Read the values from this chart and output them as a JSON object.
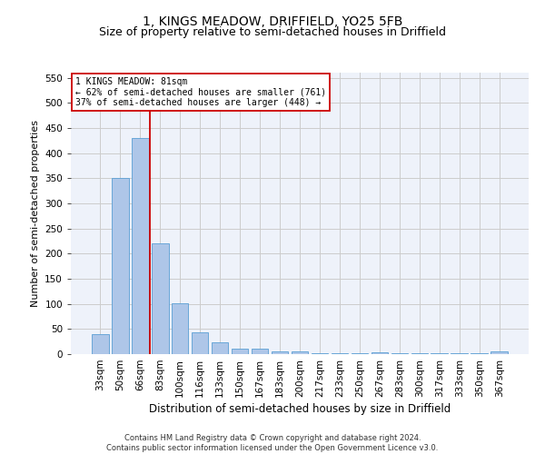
{
  "title": "1, KINGS MEADOW, DRIFFIELD, YO25 5FB",
  "subtitle": "Size of property relative to semi-detached houses in Driffield",
  "xlabel": "Distribution of semi-detached houses by size in Driffield",
  "ylabel": "Number of semi-detached properties",
  "footer_line1": "Contains HM Land Registry data © Crown copyright and database right 2024.",
  "footer_line2": "Contains public sector information licensed under the Open Government Licence v3.0.",
  "categories": [
    "33sqm",
    "50sqm",
    "66sqm",
    "83sqm",
    "100sqm",
    "116sqm",
    "133sqm",
    "150sqm",
    "167sqm",
    "183sqm",
    "200sqm",
    "217sqm",
    "233sqm",
    "250sqm",
    "267sqm",
    "283sqm",
    "300sqm",
    "317sqm",
    "333sqm",
    "350sqm",
    "367sqm"
  ],
  "values": [
    40,
    350,
    430,
    220,
    102,
    43,
    24,
    10,
    10,
    5,
    6,
    2,
    1,
    1,
    4,
    1,
    1,
    1,
    1,
    1,
    5
  ],
  "bar_color": "#aec6e8",
  "bar_edge_color": "#5a9fd4",
  "grid_color": "#cccccc",
  "subject_line_color": "#cc0000",
  "subject_label": "1 KINGS MEADOW: 81sqm",
  "annotation_smaller": "← 62% of semi-detached houses are smaller (761)",
  "annotation_larger": "37% of semi-detached houses are larger (448) →",
  "annotation_box_color": "#ffffff",
  "annotation_box_edge": "#cc0000",
  "ylim": [
    0,
    560
  ],
  "yticks": [
    0,
    50,
    100,
    150,
    200,
    250,
    300,
    350,
    400,
    450,
    500,
    550
  ],
  "background_color": "#eef2fa",
  "title_fontsize": 10,
  "subtitle_fontsize": 9,
  "xlabel_fontsize": 8.5,
  "ylabel_fontsize": 8,
  "tick_fontsize": 7.5,
  "annotation_fontsize": 7,
  "footer_fontsize": 6
}
